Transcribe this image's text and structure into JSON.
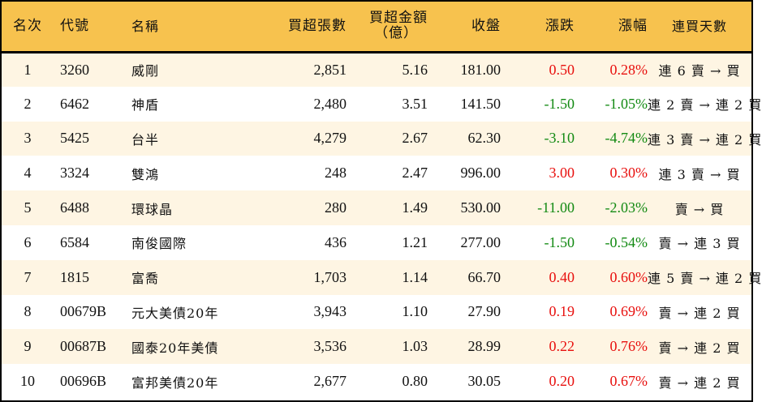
{
  "table": {
    "headers": {
      "rank": "名次",
      "code": "代號",
      "name": "名稱",
      "net_buy_lots": "買超張數",
      "net_buy_amount_line1": "買超金額",
      "net_buy_amount_line2": "（億）",
      "close": "收盤",
      "change": "漲跌",
      "change_pct": "漲幅",
      "streak": "連買天數"
    },
    "colors": {
      "header_bg": "#F7C24E",
      "row_alt_bg": "#FEF5E3",
      "up": "#E8100E",
      "down": "#138A13"
    },
    "rows": [
      {
        "rank": "1",
        "code": "3260",
        "name": "威剛",
        "lots": "2,851",
        "amount": "5.16",
        "close": "181.00",
        "change": "0.50",
        "pct": "0.28%",
        "dir": "up",
        "streak": "連 6 賣 → 買"
      },
      {
        "rank": "2",
        "code": "6462",
        "name": "神盾",
        "lots": "2,480",
        "amount": "3.51",
        "close": "141.50",
        "change": "-1.50",
        "pct": "-1.05%",
        "dir": "down",
        "streak": "連 2 賣 → 連 2 買"
      },
      {
        "rank": "3",
        "code": "5425",
        "name": "台半",
        "lots": "4,279",
        "amount": "2.67",
        "close": "62.30",
        "change": "-3.10",
        "pct": "-4.74%",
        "dir": "down",
        "streak": "連 3 賣 → 連 2 買"
      },
      {
        "rank": "4",
        "code": "3324",
        "name": "雙鴻",
        "lots": "248",
        "amount": "2.47",
        "close": "996.00",
        "change": "3.00",
        "pct": "0.30%",
        "dir": "up",
        "streak": "連 3 賣 → 買"
      },
      {
        "rank": "5",
        "code": "6488",
        "name": "環球晶",
        "lots": "280",
        "amount": "1.49",
        "close": "530.00",
        "change": "-11.00",
        "pct": "-2.03%",
        "dir": "down",
        "streak": "賣 → 買"
      },
      {
        "rank": "6",
        "code": "6584",
        "name": "南俊國際",
        "lots": "436",
        "amount": "1.21",
        "close": "277.00",
        "change": "-1.50",
        "pct": "-0.54%",
        "dir": "down",
        "streak": "賣 → 連 3 買"
      },
      {
        "rank": "7",
        "code": "1815",
        "name": "富喬",
        "lots": "1,703",
        "amount": "1.14",
        "close": "66.70",
        "change": "0.40",
        "pct": "0.60%",
        "dir": "up",
        "streak": "連 5 賣 → 連 2 買"
      },
      {
        "rank": "8",
        "code": "00679B",
        "name": "元大美債20年",
        "lots": "3,943",
        "amount": "1.10",
        "close": "27.90",
        "change": "0.19",
        "pct": "0.69%",
        "dir": "up",
        "streak": "賣 → 連 2 買"
      },
      {
        "rank": "9",
        "code": "00687B",
        "name": "國泰20年美債",
        "lots": "3,536",
        "amount": "1.03",
        "close": "28.99",
        "change": "0.22",
        "pct": "0.76%",
        "dir": "up",
        "streak": "賣 → 連 2 買"
      },
      {
        "rank": "10",
        "code": "00696B",
        "name": "富邦美債20年",
        "lots": "2,677",
        "amount": "0.80",
        "close": "30.05",
        "change": "0.20",
        "pct": "0.67%",
        "dir": "up",
        "streak": "賣 → 連 2 買"
      }
    ]
  }
}
